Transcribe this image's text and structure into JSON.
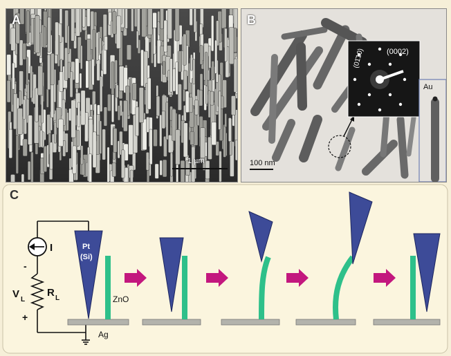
{
  "panels": {
    "a": {
      "letter": "A",
      "scalebar_label": "1 µm"
    },
    "b": {
      "letter": "B",
      "scalebar_label": "100 nm",
      "diffraction_label_1": "(0002)",
      "diffraction_label_2": "(01̄10)",
      "inset_label": "Au"
    },
    "c": {
      "letter": "C",
      "circuit": {
        "current_label": "I",
        "voltage_label": "V",
        "voltage_sub": "L",
        "resistor_label": "R",
        "resistor_sub": "L",
        "minus_label": "-",
        "plus_label": "+"
      },
      "tip_label_1": "Pt",
      "tip_label_2": "(Si)",
      "nanowire_label": "ZnO",
      "substrate_label": "Ag"
    }
  },
  "colors": {
    "background": "#f6efd8",
    "tip": "#3d4b98",
    "nanowire": "#2ec08a",
    "arrow": "#c3177e",
    "substrate": "#b3b3ac"
  }
}
